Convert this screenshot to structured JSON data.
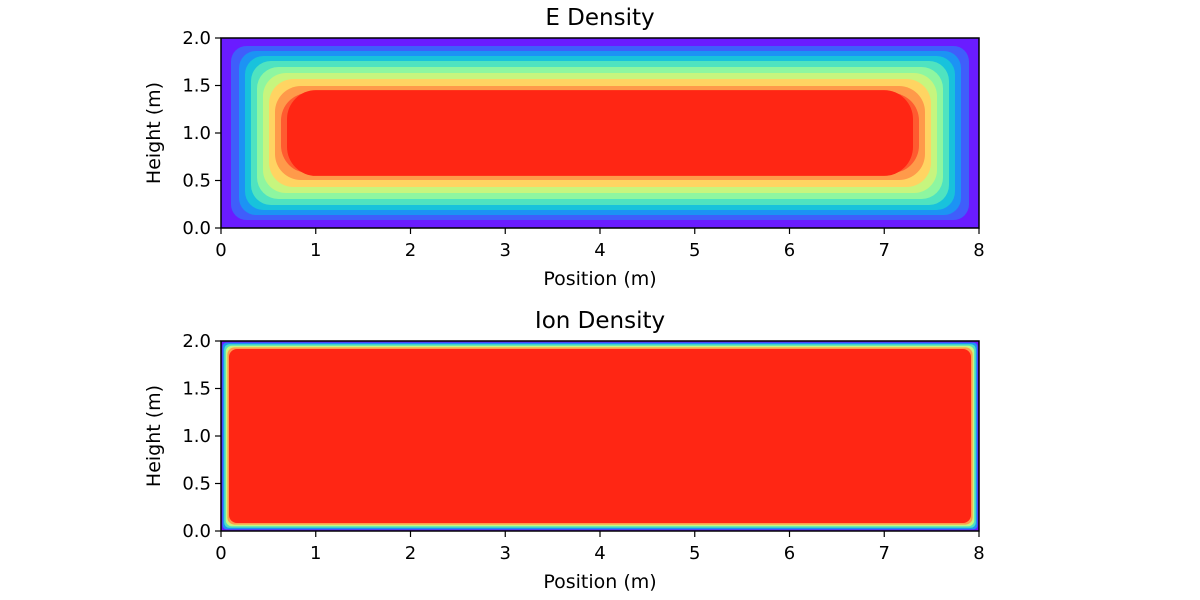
{
  "chart_data": [
    {
      "type": "heatmap",
      "title": "E Density",
      "xlabel": "Position (m)",
      "ylabel": "Height (m)",
      "xlim": [
        0,
        8
      ],
      "ylim": [
        0,
        2
      ],
      "xticks": [
        "0",
        "1",
        "2",
        "3",
        "4",
        "5",
        "6",
        "7",
        "8"
      ],
      "yticks": [
        "0.0",
        "0.5",
        "1.0",
        "1.5",
        "2.0"
      ],
      "colormap": "rainbow",
      "style": "filled contours",
      "levels": 10,
      "colors": [
        "#6a1cff",
        "#3f5efb",
        "#1c93f4",
        "#18c2dc",
        "#4fe3c0",
        "#8ef6a0",
        "#c7f57e",
        "#ffd462",
        "#ff9a4a",
        "#ff5b30",
        "#ff2614"
      ],
      "grid": false
    },
    {
      "type": "heatmap",
      "title": "Ion Density",
      "xlabel": "Position (m)",
      "ylabel": "Height (m)",
      "xlim": [
        0,
        8
      ],
      "ylim": [
        0,
        2
      ],
      "xticks": [
        "0",
        "1",
        "2",
        "3",
        "4",
        "5",
        "6",
        "7",
        "8"
      ],
      "yticks": [
        "0.0",
        "0.5",
        "1.0",
        "1.5",
        "2.0"
      ],
      "colormap": "rainbow",
      "style": "smooth",
      "colors": [
        "#6a1cff",
        "#1c93f4",
        "#4fe3c0",
        "#c7f57e",
        "#ff9a4a",
        "#ff2614"
      ],
      "grid": false
    }
  ]
}
